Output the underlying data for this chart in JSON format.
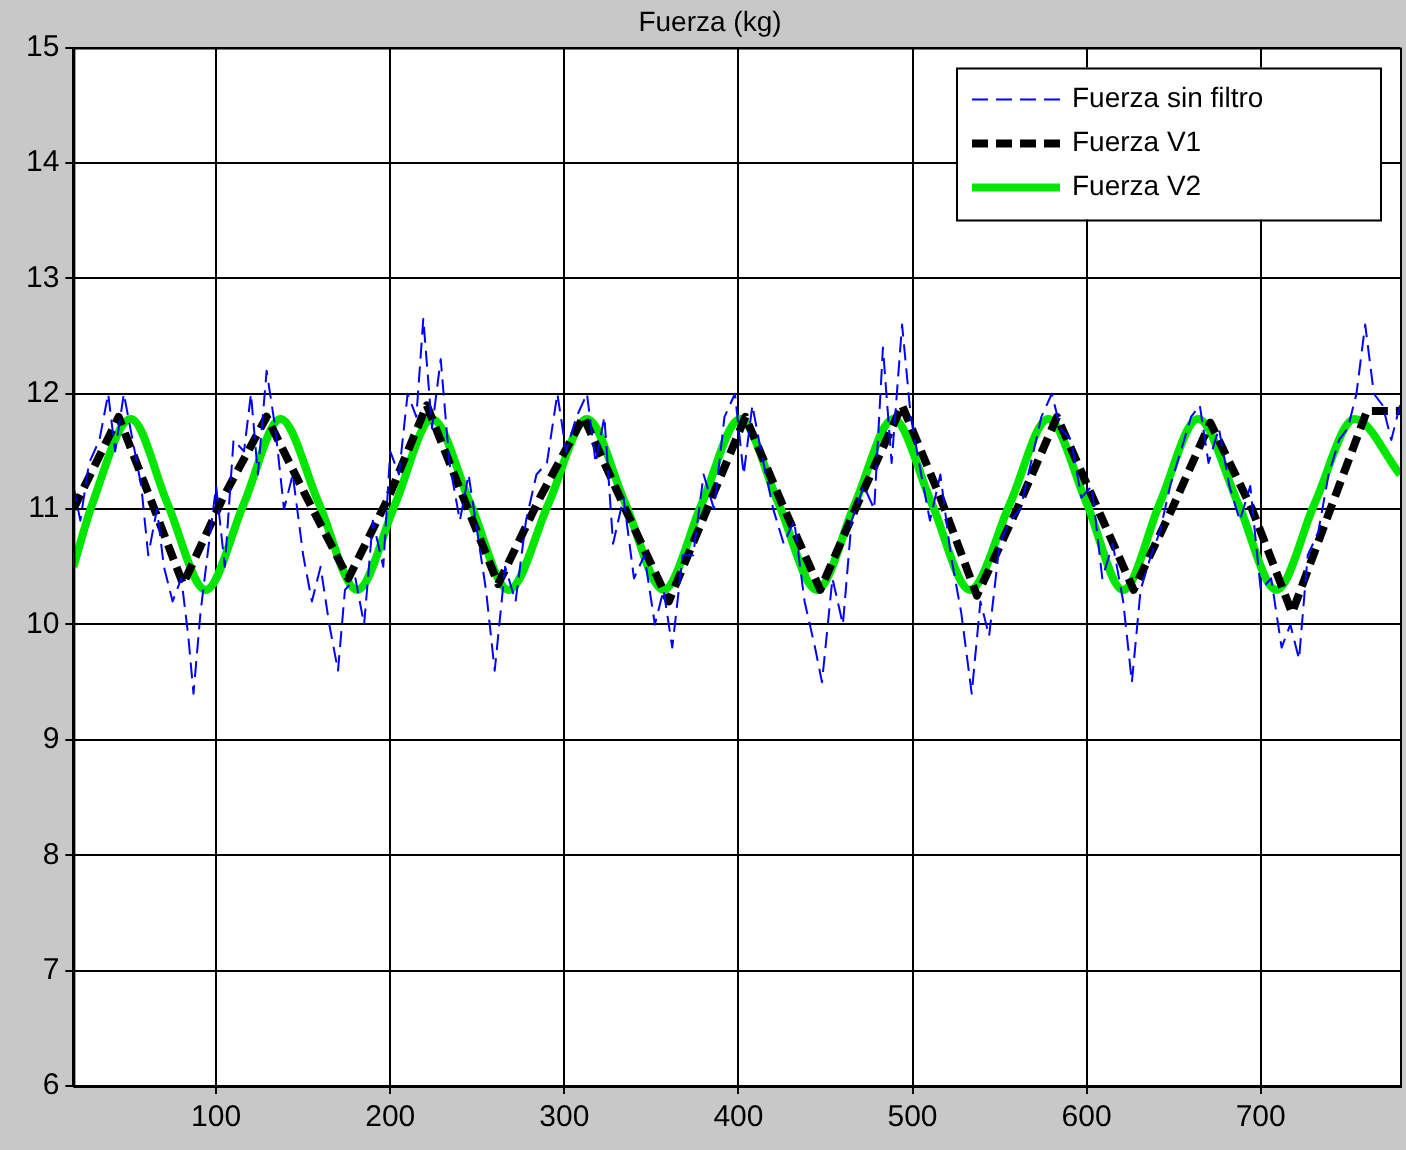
{
  "chart_data": {
    "type": "line",
    "title": "Fuerza (kg)",
    "xlim": [
      18,
      780
    ],
    "xticks": [
      100,
      200,
      300,
      400,
      500,
      600,
      700
    ],
    "ylim": [
      6,
      15
    ],
    "yticks": [
      6,
      7,
      8,
      9,
      10,
      11,
      12,
      13,
      14,
      15
    ],
    "grid": true,
    "legend": "top right",
    "marker": "none",
    "series": [
      {
        "name": "Fuerza sin filtro",
        "color": "#0000ff",
        "line_style": "dashed",
        "x": [
          18,
          22,
          27,
          33,
          38,
          42,
          47,
          52,
          57,
          61,
          66,
          70,
          75,
          80,
          84,
          87,
          91,
          95,
          100,
          105,
          110,
          116,
          120,
          124,
          129,
          134,
          139,
          144,
          150,
          155,
          160,
          165,
          170,
          174,
          180,
          185,
          190,
          196,
          200,
          205,
          210,
          215,
          219,
          224,
          229,
          234,
          240,
          245,
          250,
          255,
          260,
          266,
          272,
          278,
          284,
          290,
          296,
          301,
          307,
          313,
          318,
          323,
          328,
          334,
          340,
          346,
          352,
          357,
          362,
          368,
          374,
          380,
          386,
          392,
          398,
          403,
          408,
          413,
          420,
          426,
          432,
          438,
          444,
          448,
          454,
          460,
          465,
          472,
          478,
          483,
          488,
          494,
          499,
          505,
          510,
          516,
          522,
          528,
          534,
          539,
          544,
          550,
          556,
          562,
          568,
          574,
          580,
          585,
          591,
          597,
          603,
          609,
          615,
          621,
          626,
          631,
          637,
          642,
          648,
          654,
          660,
          665,
          670,
          676,
          682,
          688,
          694,
          700,
          706,
          712,
          717,
          722,
          727,
          733,
          739,
          745,
          750,
          755,
          760,
          765,
          770,
          775,
          780
        ],
        "values": [
          11.2,
          10.9,
          11.4,
          11.6,
          12.0,
          11.5,
          12.0,
          11.6,
          11.2,
          10.6,
          11.0,
          10.5,
          10.2,
          10.4,
          9.9,
          9.4,
          10.1,
          10.6,
          11.2,
          10.5,
          11.6,
          11.5,
          12.0,
          11.3,
          12.2,
          11.7,
          11.0,
          11.3,
          10.6,
          10.2,
          10.5,
          10.0,
          9.6,
          10.3,
          10.4,
          10.0,
          10.9,
          10.5,
          11.5,
          11.3,
          12.0,
          11.8,
          12.65,
          11.7,
          12.3,
          11.4,
          10.9,
          11.3,
          10.8,
          10.3,
          9.6,
          10.5,
          10.2,
          10.9,
          11.3,
          11.4,
          12.0,
          11.5,
          11.8,
          12.0,
          11.4,
          11.8,
          10.7,
          11.1,
          10.4,
          10.6,
          10.0,
          10.3,
          9.8,
          10.6,
          10.6,
          11.3,
          11.0,
          11.8,
          12.0,
          11.3,
          11.9,
          11.5,
          11.0,
          10.7,
          10.9,
          10.2,
          9.8,
          9.5,
          10.4,
          10.0,
          10.9,
          11.2,
          11.0,
          12.4,
          11.4,
          12.6,
          11.8,
          11.3,
          10.9,
          11.3,
          10.6,
          10.1,
          9.4,
          10.2,
          9.9,
          10.7,
          10.9,
          11.0,
          11.4,
          11.8,
          12.0,
          11.7,
          11.6,
          11.1,
          11.2,
          10.4,
          10.7,
          10.2,
          9.5,
          10.3,
          10.6,
          10.8,
          11.2,
          11.5,
          11.8,
          11.9,
          11.4,
          11.7,
          11.2,
          10.9,
          11.2,
          10.3,
          10.4,
          9.8,
          10.0,
          9.7,
          10.6,
          10.8,
          11.3,
          11.6,
          11.7,
          12.0,
          12.6,
          12.0,
          11.9,
          11.6,
          11.9
        ]
      },
      {
        "name": "Fuerza V1",
        "color": "#000000",
        "line_style": "dashed",
        "x": [
          18,
          44,
          62,
          81,
          104,
          129,
          152,
          176,
          199,
          221,
          242,
          262,
          286,
          311,
          335,
          360,
          382,
          404,
          425,
          447,
          470,
          494,
          516,
          537,
          560,
          583,
          605,
          627,
          649,
          671,
          695,
          718,
          740,
          761,
          780
        ],
        "values": [
          11.0,
          11.8,
          11.1,
          10.35,
          11.1,
          11.8,
          11.1,
          10.4,
          11.1,
          11.9,
          11.1,
          10.35,
          11.1,
          11.8,
          11.0,
          10.2,
          11.0,
          11.8,
          11.05,
          10.3,
          11.1,
          11.9,
          11.1,
          10.25,
          11.0,
          11.8,
          11.05,
          10.3,
          11.0,
          11.75,
          11.0,
          10.1,
          11.0,
          11.85,
          11.85
        ]
      },
      {
        "name": "Fuerza V2",
        "color": "#00e600",
        "line_style": "solid",
        "x": [
          18,
          29,
          51,
          72,
          94,
          116,
          137,
          159,
          181,
          203,
          224,
          246,
          268,
          291,
          313,
          335,
          357,
          379,
          401,
          423,
          445,
          467,
          489,
          511,
          533,
          556,
          578,
          600,
          621,
          642,
          664,
          687,
          709,
          731,
          754,
          780
        ],
        "values": [
          10.5,
          11.05,
          11.78,
          11.05,
          10.3,
          11.05,
          11.78,
          11.05,
          10.3,
          11.05,
          11.78,
          11.05,
          10.3,
          11.05,
          11.78,
          11.05,
          10.3,
          11.05,
          11.78,
          11.05,
          10.3,
          11.05,
          11.78,
          11.05,
          10.3,
          11.05,
          11.78,
          11.05,
          10.3,
          11.05,
          11.78,
          11.05,
          10.3,
          11.05,
          11.78,
          11.3
        ]
      }
    ]
  }
}
